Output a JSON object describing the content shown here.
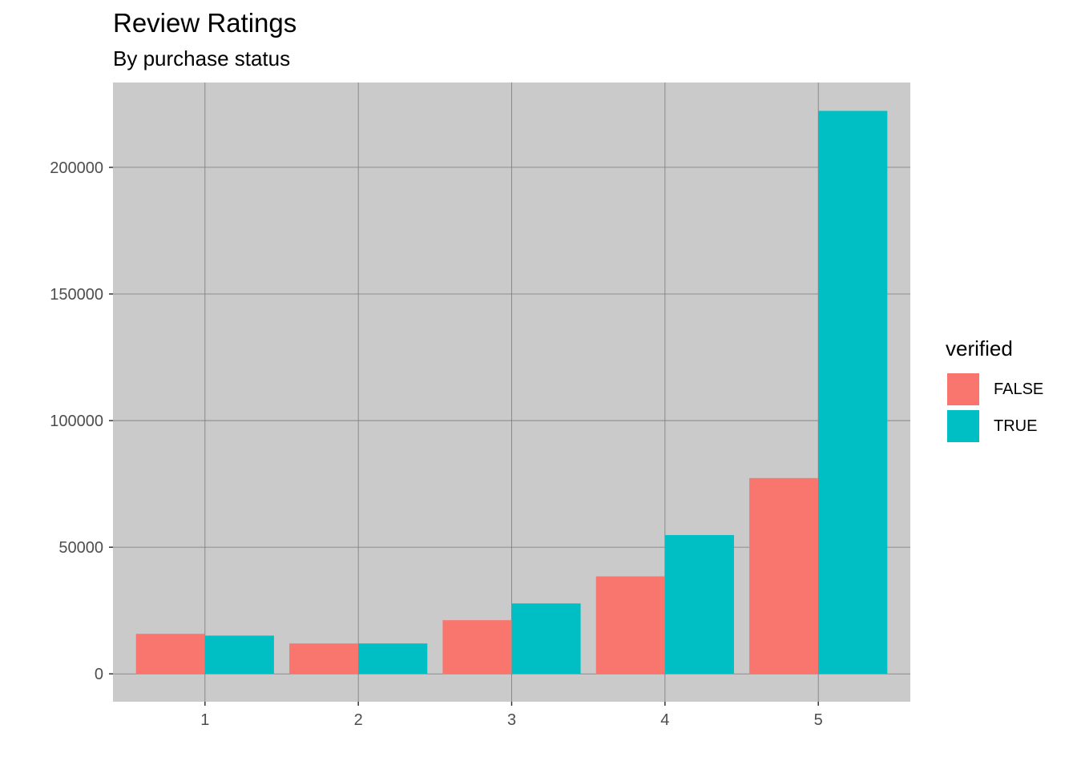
{
  "chart_data": {
    "type": "bar",
    "title": "Review Ratings",
    "subtitle": "By purchase status",
    "xlabel": "",
    "ylabel": "",
    "categories": [
      "1",
      "2",
      "3",
      "4",
      "5"
    ],
    "series": [
      {
        "name": "FALSE",
        "color": "#F8766D",
        "values": [
          15800,
          12000,
          21200,
          38500,
          77300
        ]
      },
      {
        "name": "TRUE",
        "color": "#00BFC4",
        "values": [
          15100,
          12000,
          27800,
          54800,
          222300
        ]
      }
    ],
    "ylim": [
      -11000,
      233500
    ],
    "yticks": [
      0,
      50000,
      100000,
      150000,
      200000
    ],
    "ytick_labels": [
      "0",
      "50000",
      "100000",
      "150000",
      "200000"
    ],
    "grid": true,
    "legend": {
      "title": "verified",
      "position": "right"
    }
  }
}
